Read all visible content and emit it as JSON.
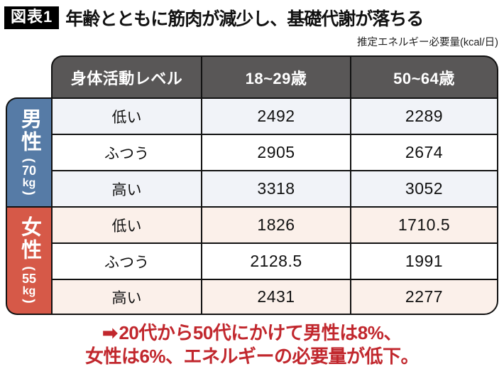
{
  "header": {
    "badge": "図表1",
    "title": "年齢とともに筋肉が減少し、基礎代謝が落ちる",
    "unit_note": "推定エネルギー必要量(kcal/日)"
  },
  "table": {
    "columns": [
      "身体活動レベル",
      "18~29歳",
      "50~64歳"
    ],
    "groups": [
      {
        "label": "男性",
        "weight": {
          "open": "(",
          "value": "70",
          "unit": "kg",
          "close": ")"
        },
        "rows": [
          {
            "level": "低い",
            "age18_29": "2492",
            "age50_64": "2289"
          },
          {
            "level": "ふつう",
            "age18_29": "2905",
            "age50_64": "2674"
          },
          {
            "level": "高い",
            "age18_29": "3318",
            "age50_64": "3052"
          }
        ]
      },
      {
        "label": "女性",
        "weight": {
          "open": "(",
          "value": "55",
          "unit": "kg",
          "close": ")"
        },
        "rows": [
          {
            "level": "低い",
            "age18_29": "1826",
            "age50_64": "1710.5"
          },
          {
            "level": "ふつう",
            "age18_29": "2128.5",
            "age50_64": "1991"
          },
          {
            "level": "高い",
            "age18_29": "2431",
            "age50_64": "2277"
          }
        ]
      }
    ]
  },
  "footer": {
    "arrow": "➡",
    "line1": "20代から50代にかけて男性は8%、",
    "line2": "女性は6%、エネルギーの必要量が低下。"
  },
  "colors": {
    "header_bg": "#595757",
    "male_bg": "#567ba6",
    "female_bg": "#d65948",
    "male_row_tint": "#f1f3f8",
    "female_row_tint": "#fbf0ea",
    "accent_red": "#c1272d",
    "border": "#111111"
  },
  "chart_data": {
    "type": "table",
    "title": "年齢とともに筋肉が減少し、基礎代謝が落ちる",
    "unit": "推定エネルギー必要量(kcal/日)",
    "columns": [
      "身体活動レベル",
      "18~29歳",
      "50~64歳"
    ],
    "rows": [
      {
        "group": "男性(70kg)",
        "level": "低い",
        "age_18_29": 2492,
        "age_50_64": 2289
      },
      {
        "group": "男性(70kg)",
        "level": "ふつう",
        "age_18_29": 2905,
        "age_50_64": 2674
      },
      {
        "group": "男性(70kg)",
        "level": "高い",
        "age_18_29": 3318,
        "age_50_64": 3052
      },
      {
        "group": "女性(55kg)",
        "level": "低い",
        "age_18_29": 1826,
        "age_50_64": 1710.5
      },
      {
        "group": "女性(55kg)",
        "level": "ふつう",
        "age_18_29": 2128.5,
        "age_50_64": 1991
      },
      {
        "group": "女性(55kg)",
        "level": "高い",
        "age_18_29": 2431,
        "age_50_64": 2277
      }
    ],
    "annotation": "➡20代から50代にかけて男性は8%、女性は6%、エネルギーの必要量が低下。"
  }
}
